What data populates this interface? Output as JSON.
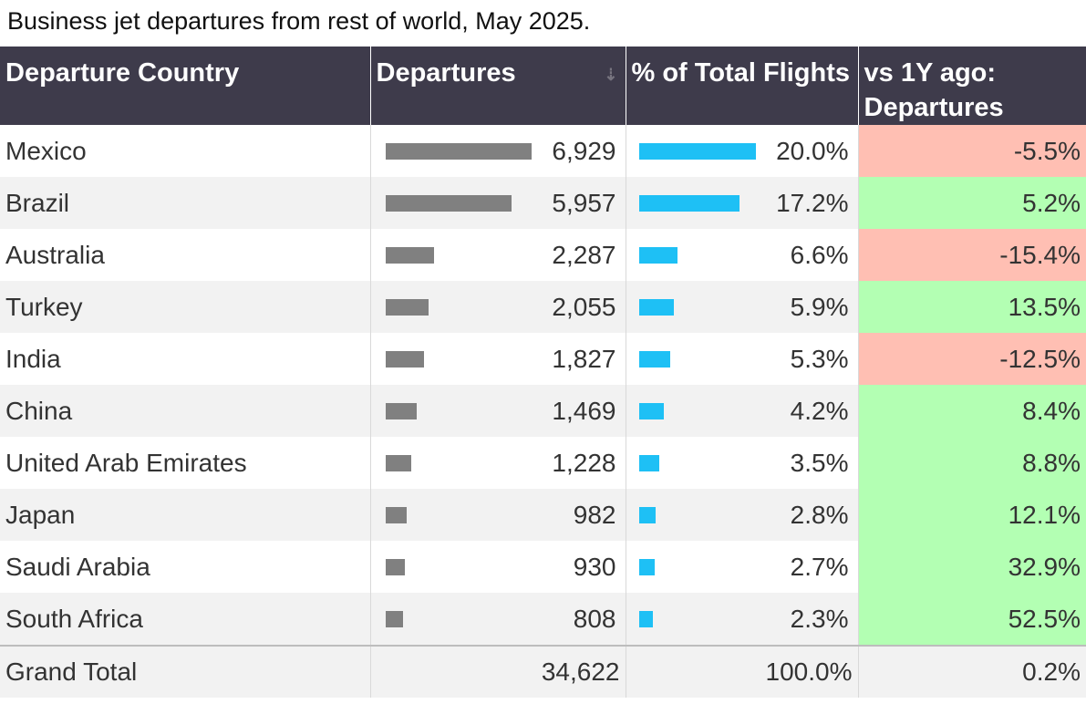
{
  "title": "Business jet departures from rest of world, May 2025.",
  "headers": {
    "country": "Departure Country",
    "departures": "Departures",
    "pct": "% of Total Flights",
    "yoy": "vs 1Y ago: Departures"
  },
  "rows": [
    {
      "country": "Mexico",
      "departures": "6,929",
      "pct": "20.0%",
      "yoy": "-5.5%"
    },
    {
      "country": "Brazil",
      "departures": "5,957",
      "pct": "17.2%",
      "yoy": "5.2%"
    },
    {
      "country": "Australia",
      "departures": "2,287",
      "pct": "6.6%",
      "yoy": "-15.4%"
    },
    {
      "country": "Turkey",
      "departures": "2,055",
      "pct": "5.9%",
      "yoy": "13.5%"
    },
    {
      "country": "India",
      "departures": "1,827",
      "pct": "5.3%",
      "yoy": "-12.5%"
    },
    {
      "country": "China",
      "departures": "1,469",
      "pct": "4.2%",
      "yoy": "8.4%"
    },
    {
      "country": "United Arab Emirates",
      "departures": "1,228",
      "pct": "3.5%",
      "yoy": "8.8%"
    },
    {
      "country": "Japan",
      "departures": "982",
      "pct": "2.8%",
      "yoy": "12.1%"
    },
    {
      "country": "Saudi Arabia",
      "departures": "930",
      "pct": "2.7%",
      "yoy": "32.9%"
    },
    {
      "country": "South Africa",
      "departures": "808",
      "pct": "2.3%",
      "yoy": "52.5%"
    }
  ],
  "total": {
    "country": "Grand Total",
    "departures": "34,622",
    "pct": "100.0%",
    "yoy": "0.2%"
  },
  "sort_icon": "sort-descending-icon",
  "colors": {
    "header_bg": "#3e3b4b",
    "departures_bar": "#808080",
    "pct_bar": "#1ec0f5",
    "negative_bg": "#ffbfb3",
    "positive_bg": "#b3ffb3"
  },
  "chart_data": {
    "type": "table",
    "title": "Business jet departures from rest of world, May 2025.",
    "columns": [
      "Departure Country",
      "Departures",
      "% of Total Flights",
      "vs 1Y ago: Departures"
    ],
    "categories": [
      "Mexico",
      "Brazil",
      "Australia",
      "Turkey",
      "India",
      "China",
      "United Arab Emirates",
      "Japan",
      "Saudi Arabia",
      "South Africa"
    ],
    "series": [
      {
        "name": "Departures",
        "values": [
          6929,
          5957,
          2287,
          2055,
          1827,
          1469,
          1228,
          982,
          930,
          808
        ]
      },
      {
        "name": "% of Total Flights",
        "values": [
          20.0,
          17.2,
          6.6,
          5.9,
          5.3,
          4.2,
          3.5,
          2.8,
          2.7,
          2.3
        ]
      },
      {
        "name": "vs 1Y ago: Departures",
        "values": [
          -5.5,
          5.2,
          -15.4,
          13.5,
          -12.5,
          8.4,
          8.8,
          12.1,
          32.9,
          52.5
        ]
      }
    ],
    "totals": {
      "departures": 34622,
      "pct": 100.0,
      "yoy": 0.2
    }
  }
}
